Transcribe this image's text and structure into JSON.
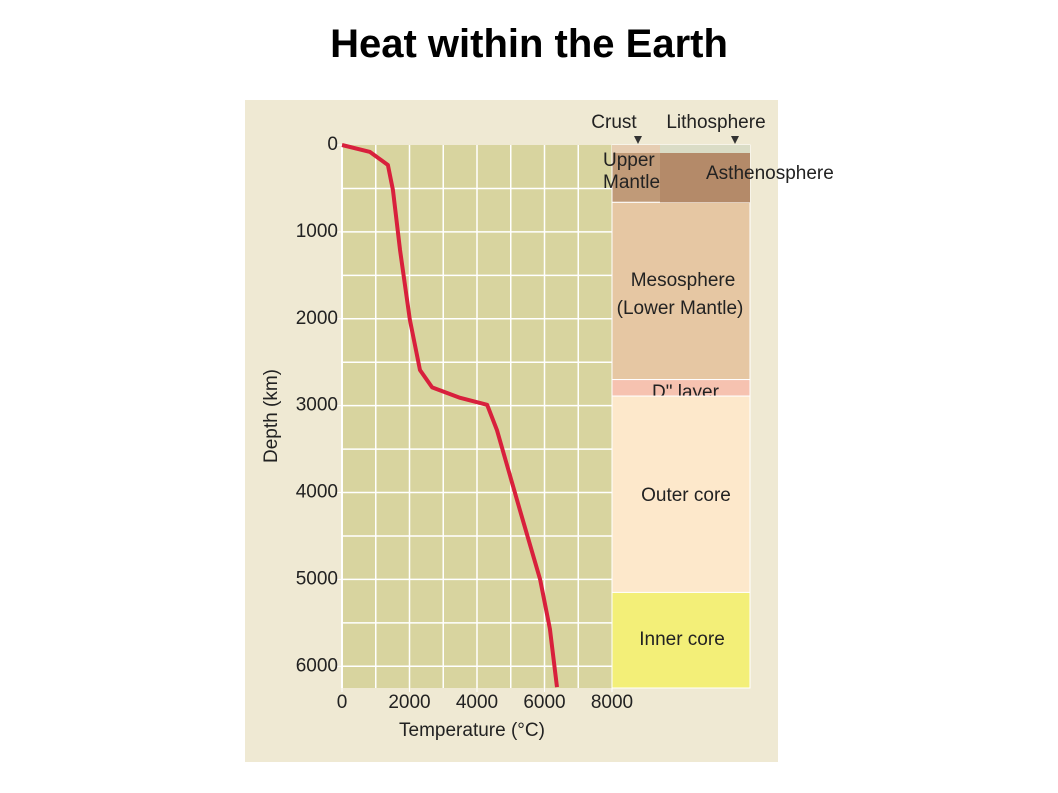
{
  "title": "Heat within the Earth",
  "chart_data": {
    "type": "line",
    "reversed_y": true,
    "xlabel": "Temperature (°C)",
    "ylabel": "Depth (km)",
    "xlim": [
      0,
      8000
    ],
    "xticks": [
      0,
      2000,
      4000,
      6000,
      8000
    ],
    "ylim": [
      0,
      6250
    ],
    "yticks": [
      0,
      1000,
      2000,
      3000,
      4000,
      5000,
      6000
    ],
    "xgrid": [
      1000,
      2000,
      3000,
      4000,
      5000,
      6000,
      7000
    ],
    "ygrid": [
      500,
      1000,
      1500,
      2000,
      2500,
      3000,
      3500,
      4000,
      4500,
      5000,
      5500,
      6000
    ],
    "grid": true,
    "plot_color": "#d8d49f",
    "grid_color": "#ffffff",
    "series": [
      {
        "color": "#d8203c",
        "x": [
          0,
          830,
          1360,
          1510,
          1720,
          2010,
          2310,
          2670,
          3500,
          4300,
          4590,
          5270,
          5870,
          6160,
          6370
        ],
        "values": [
          0,
          80,
          230,
          520,
          1210,
          2010,
          2590,
          2790,
          2910,
          2990,
          3280,
          4200,
          5000,
          5570,
          6240
        ]
      }
    ],
    "top_labels": [
      "Crust",
      "Lithosphere"
    ],
    "asthenosphere": "Asthenosphere",
    "layers": [
      {
        "label": [
          "Upper",
          "Mantle"
        ],
        "top": 0,
        "bottom": 660,
        "color": "#c09a78"
      },
      {
        "label": [
          "Mesosphere",
          "(Lower Mantle)"
        ],
        "top": 660,
        "bottom": 2700,
        "color": "#e6c7a3"
      },
      {
        "label": [
          "D\" layer"
        ],
        "top": 2700,
        "bottom": 2890,
        "color": "#f6c2b0"
      },
      {
        "label": [
          "Outer core"
        ],
        "top": 2890,
        "bottom": 5150,
        "color": "#fde8cb"
      },
      {
        "label": [
          "Inner core"
        ],
        "top": 5150,
        "bottom": 6250,
        "color": "#f3ef78"
      }
    ]
  }
}
